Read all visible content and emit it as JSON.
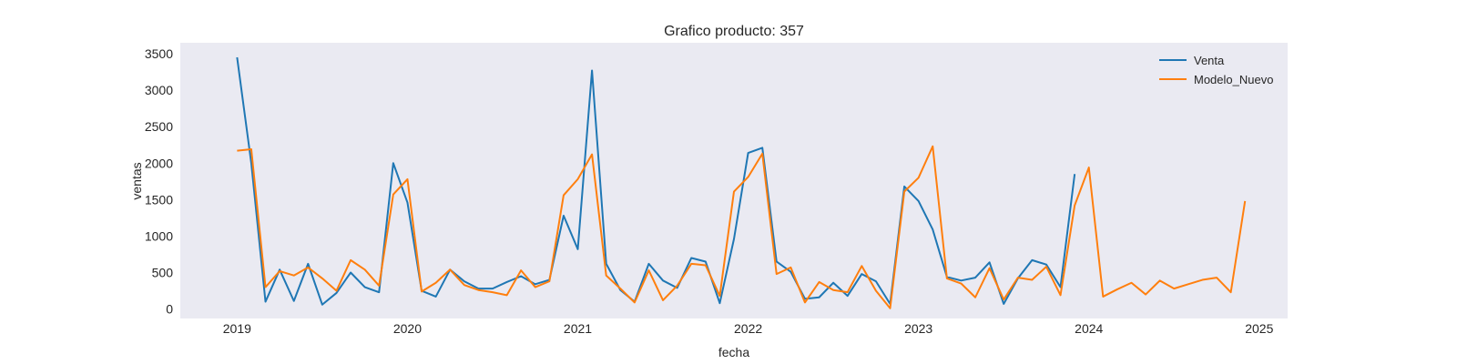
{
  "chart_data": {
    "type": "line",
    "title": "Grafico producto: 357",
    "xlabel": "fecha",
    "ylabel": "ventas",
    "x_tick_labels": [
      "2019",
      "2020",
      "2021",
      "2022",
      "2023",
      "2024",
      "2025"
    ],
    "y_tick_labels": [
      "0",
      "500",
      "1000",
      "1500",
      "2000",
      "2500",
      "3000",
      "3500"
    ],
    "ylim": [
      -130,
      3650
    ],
    "xlim": [
      "2018-09",
      "2025-03"
    ],
    "grid": false,
    "legend_position": "top-right",
    "background": "#eaeaf2",
    "series": [
      {
        "name": "Venta",
        "color": "#1f77b4",
        "start": "2019-01",
        "values": [
          3450,
          2000,
          100,
          540,
          110,
          620,
          60,
          220,
          500,
          300,
          230,
          2000,
          1460,
          250,
          170,
          540,
          380,
          280,
          280,
          370,
          450,
          340,
          400,
          1280,
          820,
          3270,
          620,
          260,
          100,
          620,
          390,
          290,
          700,
          650,
          80,
          960,
          2140,
          2210,
          650,
          510,
          140,
          160,
          360,
          180,
          480,
          380,
          70,
          1680,
          1480,
          1090,
          440,
          390,
          430,
          640,
          70,
          420,
          670,
          610,
          300,
          1850
        ]
      },
      {
        "name": "Modelo_Nuevo",
        "color": "#ff7f0e",
        "start": "2019-01",
        "values": [
          2170,
          2190,
          300,
          520,
          460,
          570,
          420,
          250,
          670,
          540,
          320,
          1570,
          1780,
          240,
          360,
          540,
          330,
          260,
          230,
          190,
          530,
          300,
          380,
          1560,
          1780,
          2120,
          460,
          280,
          90,
          530,
          120,
          320,
          620,
          600,
          180,
          1610,
          1810,
          2130,
          480,
          570,
          90,
          370,
          260,
          230,
          590,
          250,
          10,
          1610,
          1800,
          2230,
          420,
          350,
          160,
          560,
          130,
          430,
          400,
          580,
          190,
          1420,
          1940,
          170,
          270,
          360,
          200,
          390,
          280,
          340,
          400,
          430,
          230,
          1480
        ]
      }
    ]
  }
}
